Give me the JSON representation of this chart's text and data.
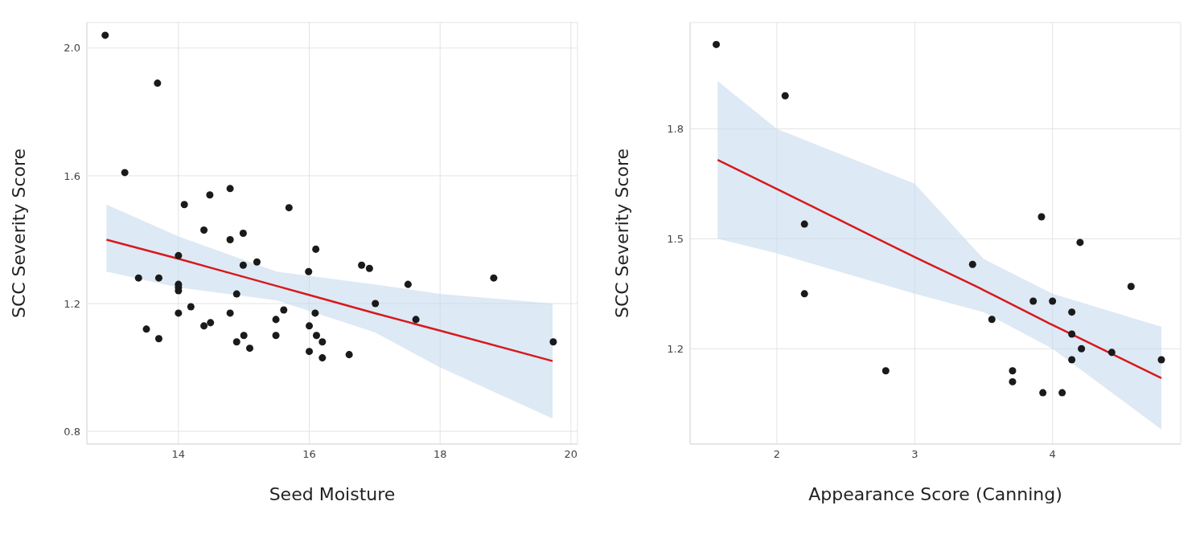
{
  "chart_data": [
    {
      "type": "scatter",
      "xlabel": "Seed Moisture",
      "ylabel": "SCC Severity Score",
      "xlim": [
        12.6,
        20.1
      ],
      "ylim": [
        0.76,
        2.08
      ],
      "xticks": [
        14,
        16,
        18,
        20
      ],
      "yticks": [
        {
          "value": 0.8,
          "label": "0.8"
        },
        {
          "value": 1.2,
          "label": "1.2"
        },
        {
          "value": 1.6,
          "label": "1.6"
        },
        {
          "value": 2,
          "label": "2.0"
        }
      ],
      "grid": true,
      "series": [
        {
          "marker": "circle",
          "color": "#1a1a1a",
          "x": [
            12.88,
            13.68,
            13.18,
            13.39,
            13.51,
            13.7,
            13.7,
            14.0,
            14.0,
            14.0,
            14.0,
            14.0,
            14.09,
            14.19,
            14.39,
            14.39,
            14.48,
            14.49,
            14.79,
            14.79,
            14.79,
            14.89,
            14.89,
            14.99,
            14.99,
            15.0,
            15.09,
            15.2,
            15.49,
            15.49,
            15.61,
            15.69,
            15.99,
            16.0,
            16.0,
            16.1,
            16.09,
            16.11,
            16.2,
            16.2,
            16.61,
            16.8,
            16.92,
            17.01,
            17.51,
            17.63,
            18.82,
            19.73
          ],
          "values": [
            2.04,
            1.89,
            1.61,
            1.28,
            1.12,
            1.28,
            1.09,
            1.35,
            1.26,
            1.25,
            1.24,
            1.17,
            1.51,
            1.19,
            1.43,
            1.13,
            1.54,
            1.14,
            1.56,
            1.4,
            1.17,
            1.23,
            1.08,
            1.42,
            1.32,
            1.1,
            1.06,
            1.33,
            1.15,
            1.1,
            1.18,
            1.5,
            1.3,
            1.13,
            1.05,
            1.37,
            1.17,
            1.1,
            1.08,
            1.03,
            1.04,
            1.32,
            1.31,
            1.2,
            1.26,
            1.15,
            1.28,
            1.08
          ]
        },
        {
          "type": "line",
          "color": "#d7191c",
          "x": [
            12.9,
            14,
            15.5,
            17,
            18,
            19.72
          ],
          "values": [
            1.4,
            1.34,
            1.255,
            1.17,
            1.115,
            1.02
          ],
          "lower": [
            1.3,
            1.25,
            1.21,
            1.11,
            1.0,
            0.84
          ],
          "upper": [
            1.51,
            1.41,
            1.3,
            1.26,
            1.23,
            1.2
          ]
        }
      ]
    },
    {
      "type": "scatter",
      "xlabel": "Appearance Score (Canning)",
      "ylabel": "SCC Severity Score",
      "xlim": [
        1.37,
        4.93
      ],
      "ylim": [
        0.94,
        2.09
      ],
      "xticks": [
        2,
        3,
        4
      ],
      "yticks": [
        1.2,
        1.5,
        1.8
      ],
      "grid": true,
      "series": [
        {
          "marker": "circle",
          "color": "#1a1a1a",
          "x": [
            1.56,
            2.06,
            2.2,
            2.2,
            2.79,
            3.42,
            3.56,
            3.71,
            3.71,
            3.92,
            3.93,
            3.86,
            4.0,
            4.07,
            4.14,
            4.14,
            4.14,
            4.2,
            4.21,
            4.43,
            4.57,
            4.79
          ],
          "values": [
            2.03,
            1.89,
            1.54,
            1.35,
            1.14,
            1.43,
            1.28,
            1.14,
            1.11,
            1.56,
            1.08,
            1.33,
            1.33,
            1.08,
            1.3,
            1.24,
            1.17,
            1.49,
            1.2,
            1.19,
            1.37,
            1.17
          ]
        },
        {
          "type": "line",
          "color": "#d7191c",
          "x": [
            1.57,
            2,
            3,
            3.5,
            4,
            4.79
          ],
          "values": [
            1.715,
            1.636,
            1.45,
            1.36,
            1.265,
            1.12
          ],
          "lower": [
            1.5,
            1.46,
            1.35,
            1.3,
            1.2,
            0.98
          ],
          "upper": [
            1.93,
            1.8,
            1.65,
            1.445,
            1.35,
            1.26
          ]
        }
      ]
    }
  ]
}
